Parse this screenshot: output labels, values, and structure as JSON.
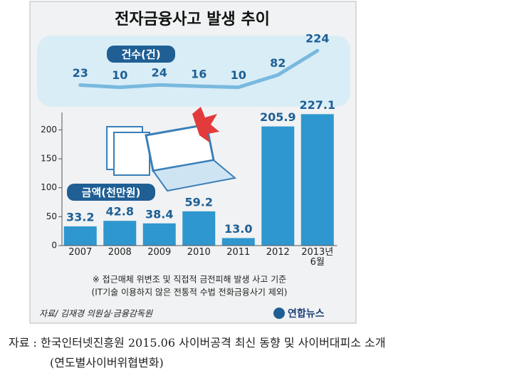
{
  "title": "전자금융사고 발생 추이",
  "chart_data": [
    {
      "type": "line",
      "label": "건수(건)",
      "values": [
        23,
        10,
        24,
        16,
        10,
        82,
        224
      ],
      "color": "#79b9de"
    },
    {
      "type": "bar",
      "label": "금액(천만원)",
      "categories": [
        "2007",
        "2008",
        "2009",
        "2010",
        "2011",
        "2012",
        "2013년 6월"
      ],
      "values": [
        33.2,
        42.8,
        38.4,
        59.2,
        13.0,
        205.9,
        227.1
      ],
      "value_labels": [
        "33.2",
        "42.8",
        "38.4",
        "59.2",
        "13.0",
        "205.9",
        "227.1"
      ],
      "color": "#2f97cf",
      "ylim": [
        0,
        230
      ],
      "yticks": [
        0,
        50,
        100,
        150,
        200
      ]
    }
  ],
  "notes": [
    "※ 접근매체 위변조 및 직접적 금전피해 발생 사고 기준",
    "(IT기술 이용하지 않은 전통적 수법 전화금융사기 제외)"
  ],
  "credit": "자료/ 김재경 의원실·금융감독원",
  "logo": "연합뉴스",
  "caption": [
    "자료 : 한국인터넷진흥원 2015.06 사이버공격 최신 동향 및 사이버대피소 소개",
    "(연도별사이버위협변화)"
  ]
}
